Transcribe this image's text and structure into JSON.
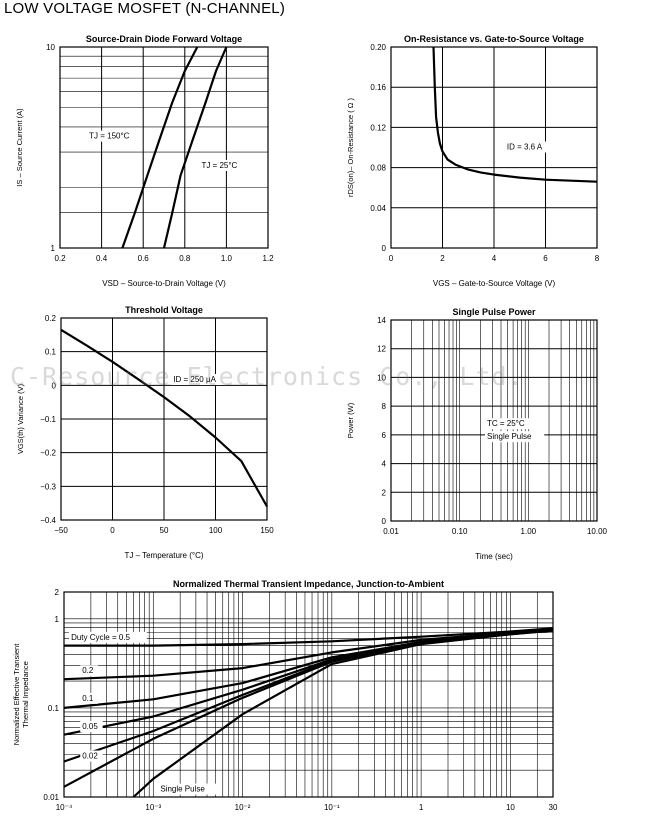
{
  "page_title": "LOW VOLTAGE MOSFET  (N-CHANNEL)",
  "watermark": "C-Resource Electronics Co., Ltd.",
  "chart_data": [
    {
      "id": "c1",
      "type": "line",
      "title": "Source-Drain Diode Forward Voltage",
      "xlabel": "VSD – Source-to-Drain Voltage (V)",
      "ylabel": "IS – Source Current (A)",
      "xlim": [
        0.2,
        1.2
      ],
      "ylim": [
        1,
        10
      ],
      "yscale": "log",
      "xticks": [
        "0.2",
        "0.4",
        "0.6",
        "0.8",
        "1.0",
        "1.2"
      ],
      "yticks": [
        "1",
        "10"
      ],
      "series": [
        {
          "x": [
            0.5,
            0.56,
            0.62,
            0.68,
            0.74,
            0.8,
            0.86
          ],
          "y": [
            1,
            1.5,
            2.3,
            3.5,
            5.3,
            7.6,
            10
          ]
        },
        {
          "x": [
            0.7,
            0.74,
            0.78,
            0.84,
            0.9,
            0.95,
            1.0
          ],
          "y": [
            1,
            1.5,
            2.3,
            3.5,
            5.3,
            7.6,
            10
          ]
        }
      ],
      "annotations": [
        {
          "text": "TJ = 150°C",
          "x": 0.34,
          "y": 3.5
        },
        {
          "text": "TJ = 25°C",
          "x": 0.88,
          "y": 2.5
        }
      ]
    },
    {
      "id": "c2",
      "type": "line",
      "title": "On-Resistance vs. Gate-to-Source Voltage",
      "xlabel": "VGS – Gate-to-Source Voltage (V)",
      "ylabel": "rDS(on)– On-Resistance ( Ω )",
      "xlim": [
        0,
        8
      ],
      "ylim": [
        0,
        0.2
      ],
      "xticks": [
        "0",
        "2",
        "4",
        "6",
        "8"
      ],
      "yticks": [
        "0",
        "0.04",
        "0.08",
        "0.12",
        "0.16",
        "0.20"
      ],
      "series": [
        {
          "x": [
            1.65,
            1.7,
            1.75,
            1.82,
            1.9,
            2.0,
            2.2,
            2.5,
            3.0,
            3.5,
            4.0,
            5.0,
            6.0,
            7.0,
            8.0
          ],
          "y": [
            0.2,
            0.16,
            0.13,
            0.115,
            0.104,
            0.096,
            0.088,
            0.083,
            0.078,
            0.075,
            0.073,
            0.07,
            0.068,
            0.067,
            0.066
          ]
        }
      ],
      "annotations": [
        {
          "text": "ID = 3.6 A",
          "x": 4.5,
          "y": 0.098
        }
      ]
    },
    {
      "id": "c3",
      "type": "line",
      "title": "Threshold Voltage",
      "xlabel": "TJ – Temperature (°C)",
      "ylabel": "VGS(th) Variance (V)",
      "xlim": [
        -50,
        150
      ],
      "ylim": [
        -0.4,
        0.2
      ],
      "xticks": [
        "−50",
        "0",
        "50",
        "100",
        "150"
      ],
      "yticks": [
        "−0.4",
        "−0.3",
        "−0.2",
        "−0.1",
        "0",
        "0.1",
        "0.2"
      ],
      "series": [
        {
          "x": [
            -50,
            -25,
            0,
            25,
            50,
            75,
            100,
            125,
            150
          ],
          "y": [
            0.165,
            0.118,
            0.07,
            0.018,
            -0.035,
            -0.092,
            -0.155,
            -0.225,
            -0.36
          ]
        }
      ],
      "annotations": [
        {
          "text": "ID = 250 μA",
          "x": 59,
          "y": 0.01
        }
      ]
    },
    {
      "id": "c4",
      "type": "line",
      "title": "Single Pulse Power",
      "xlabel": "Time (sec)",
      "ylabel": "Power (W)",
      "xlim": [
        0.01,
        10
      ],
      "ylim": [
        0,
        14
      ],
      "xscale": "log",
      "xticks": [
        "0.01",
        "0.10",
        "1.00",
        "10.00"
      ],
      "yticks": [
        "0",
        "2",
        "4",
        "6",
        "8",
        "10",
        "12",
        "14"
      ],
      "series": [],
      "annotations": [
        {
          "text": "TC = 25°C",
          "x": 0.25,
          "y": 6.6
        },
        {
          "text": "Single Pulse",
          "x": 0.25,
          "y": 5.7
        }
      ]
    },
    {
      "id": "c5",
      "type": "line",
      "title": "Normalized Thermal Transient Impedance, Junction-to-Ambient",
      "xlabel": "",
      "ylabel": "Normalized Effective Transient Thermal Impedance",
      "xlim": [
        0.0001,
        30
      ],
      "ylim": [
        0.01,
        2
      ],
      "xscale": "log",
      "yscale": "log",
      "xticks": [
        "10⁻⁴",
        "10⁻³",
        "10⁻²",
        "10⁻¹",
        "1",
        "10",
        "30"
      ],
      "yticks": [
        "0.01",
        "0.1",
        "1",
        "2"
      ],
      "series": [
        {
          "name": "Duty Cycle = 0.5",
          "x": [
            0.0001,
            0.001,
            0.01,
            0.1,
            1,
            10,
            30
          ],
          "y": [
            0.5,
            0.5,
            0.52,
            0.56,
            0.63,
            0.72,
            0.78
          ]
        },
        {
          "name": "0.2",
          "x": [
            0.0001,
            0.001,
            0.01,
            0.1,
            1,
            10,
            30
          ],
          "y": [
            0.21,
            0.23,
            0.28,
            0.42,
            0.58,
            0.7,
            0.76
          ]
        },
        {
          "name": "0.1",
          "x": [
            0.0001,
            0.001,
            0.01,
            0.1,
            1,
            10,
            30
          ],
          "y": [
            0.1,
            0.125,
            0.19,
            0.37,
            0.55,
            0.69,
            0.75
          ]
        },
        {
          "name": "0.05",
          "x": [
            0.0001,
            0.001,
            0.01,
            0.1,
            1,
            10,
            30
          ],
          "y": [
            0.05,
            0.08,
            0.16,
            0.35,
            0.54,
            0.68,
            0.75
          ]
        },
        {
          "name": "0.02",
          "x": [
            0.0001,
            0.001,
            0.01,
            0.1,
            1,
            10,
            30
          ],
          "y": [
            0.025,
            0.055,
            0.14,
            0.34,
            0.53,
            0.68,
            0.74
          ]
        },
        {
          "name": "",
          "x": [
            0.0001,
            0.001,
            0.01,
            0.1,
            1,
            10,
            30
          ],
          "y": [
            0.013,
            0.045,
            0.13,
            0.33,
            0.53,
            0.67,
            0.74
          ]
        },
        {
          "name": "Single Pulse",
          "x": [
            0.0006,
            0.001,
            0.01,
            0.1,
            1,
            10,
            30
          ],
          "y": [
            0.01,
            0.016,
            0.085,
            0.31,
            0.52,
            0.67,
            0.74
          ]
        }
      ],
      "annotations": [
        {
          "text": "Duty Cycle = 0.5",
          "x": 0.00012,
          "y": 0.58
        },
        {
          "text": "0.2",
          "x": 0.00016,
          "y": 0.245
        },
        {
          "text": "0.1",
          "x": 0.00016,
          "y": 0.12
        },
        {
          "text": "0.05",
          "x": 0.00016,
          "y": 0.058
        },
        {
          "text": "0.02",
          "x": 0.00016,
          "y": 0.027
        },
        {
          "text": "Single Pulse",
          "x": 0.0012,
          "y": 0.0115
        }
      ]
    }
  ]
}
